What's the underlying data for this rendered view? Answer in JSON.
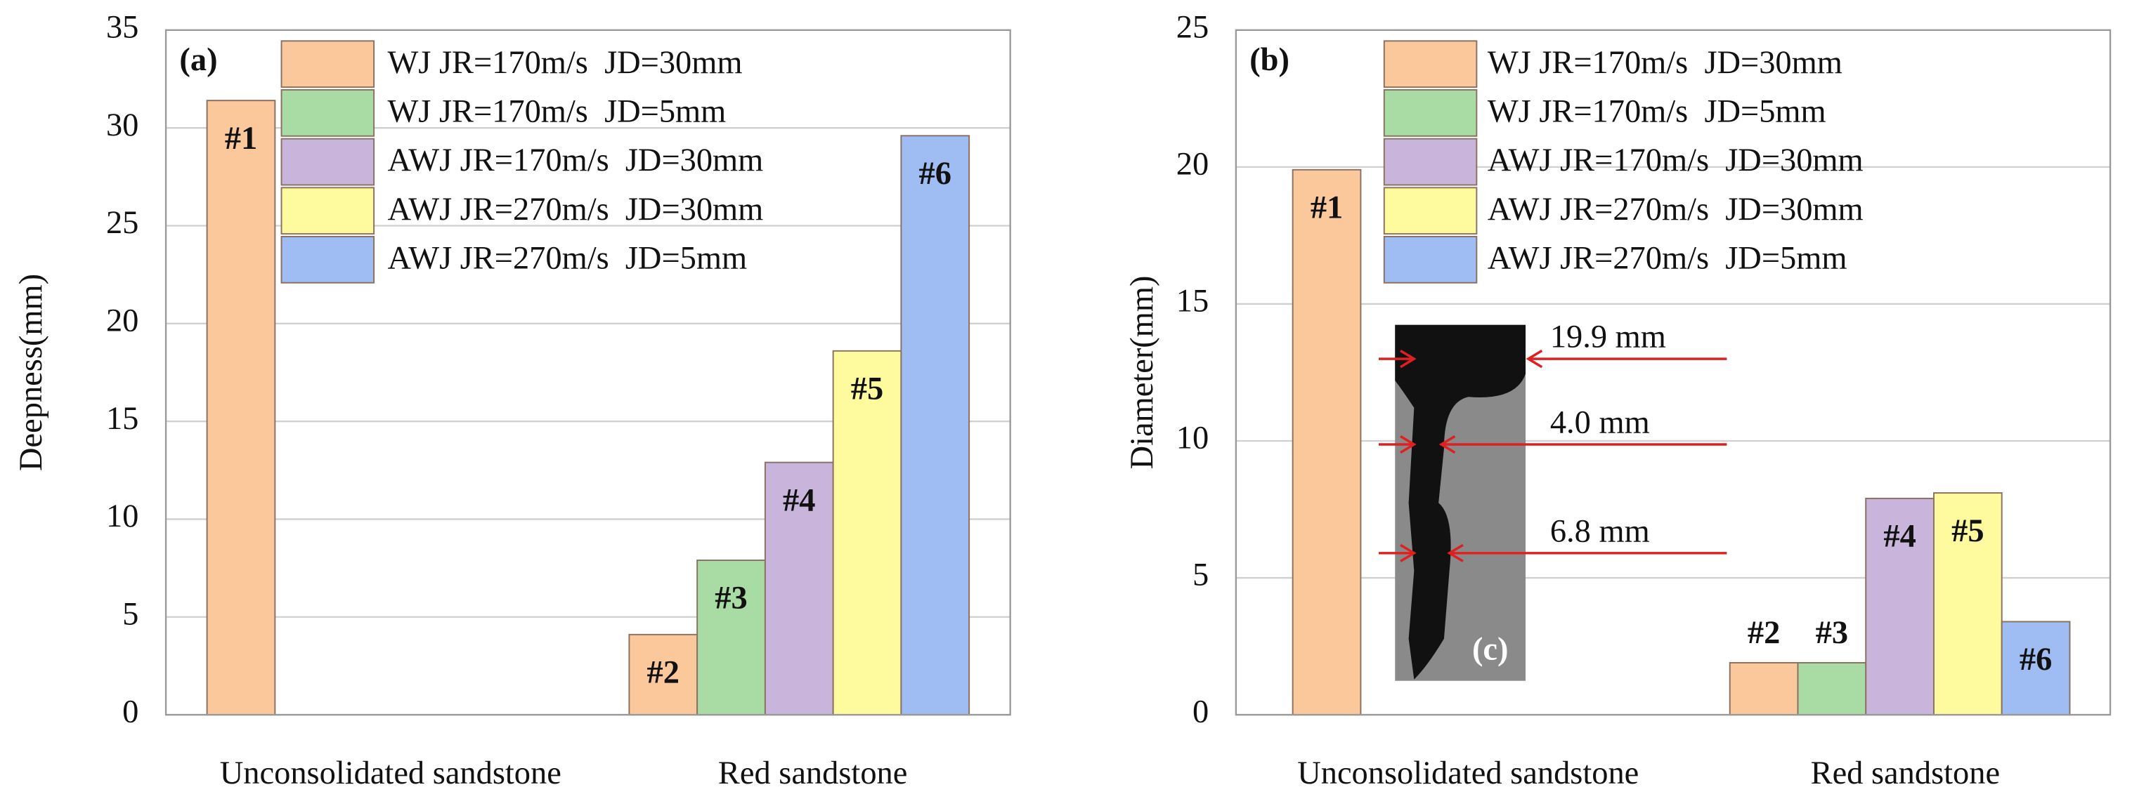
{
  "chart_data": [
    {
      "type": "bar",
      "panel_label": "(a)",
      "ylabel": "Deepness(mm)",
      "categories": [
        "Unconsolidated sandstone",
        "Red sandstone"
      ],
      "ylim": [
        0,
        35
      ],
      "yticks": [
        0,
        5,
        10,
        15,
        20,
        25,
        30,
        35
      ],
      "grid": true,
      "series": [
        {
          "name": "WJ JR=170m/s  JD=30mm",
          "color": "#fbc89c",
          "values": [
            31.4,
            4.1
          ],
          "labels": [
            "#1",
            "#2"
          ]
        },
        {
          "name": "WJ JR=170m/s  JD=5mm",
          "color": "#a9dba4",
          "values": [
            null,
            7.9
          ],
          "labels": [
            null,
            "#3"
          ]
        },
        {
          "name": "AWJ JR=170m/s  JD=30mm",
          "color": "#c9b5dc",
          "values": [
            null,
            12.9
          ],
          "labels": [
            null,
            "#4"
          ]
        },
        {
          "name": "AWJ JR=270m/s  JD=30mm",
          "color": "#fdfb9e",
          "values": [
            null,
            18.6
          ],
          "labels": [
            null,
            "#5"
          ]
        },
        {
          "name": "AWJ JR=270m/s  JD=5mm",
          "color": "#9fbdf2",
          "values": [
            null,
            29.6
          ],
          "labels": [
            null,
            "#6"
          ]
        }
      ]
    },
    {
      "type": "bar",
      "panel_label": "(b)",
      "ylabel": "Diameter(mm)",
      "categories": [
        "Unconsolidated sandstone",
        "Red sandstone"
      ],
      "ylim": [
        0,
        25
      ],
      "yticks": [
        0,
        5,
        10,
        15,
        20,
        25
      ],
      "grid": true,
      "series": [
        {
          "name": "WJ JR=170m/s  JD=30mm",
          "color": "#fbc89c",
          "values": [
            19.9,
            1.9
          ],
          "labels": [
            "#1",
            "#2"
          ]
        },
        {
          "name": "WJ JR=170m/s  JD=5mm",
          "color": "#a9dba4",
          "values": [
            null,
            1.9
          ],
          "labels": [
            null,
            "#3"
          ]
        },
        {
          "name": "AWJ JR=170m/s  JD=30mm",
          "color": "#c9b5dc",
          "values": [
            null,
            7.9
          ],
          "labels": [
            null,
            "#4"
          ]
        },
        {
          "name": "AWJ JR=270m/s  JD=30mm",
          "color": "#fdfb9e",
          "values": [
            null,
            8.1
          ],
          "labels": [
            null,
            "#5"
          ]
        },
        {
          "name": "AWJ JR=270m/s  JD=5mm",
          "color": "#9fbdf2",
          "values": [
            null,
            3.4
          ],
          "labels": [
            null,
            "#6"
          ]
        }
      ],
      "inset": {
        "label": "(c)",
        "annotations": [
          "19.9 mm",
          "4.0 mm",
          "6.8 mm"
        ]
      }
    }
  ]
}
